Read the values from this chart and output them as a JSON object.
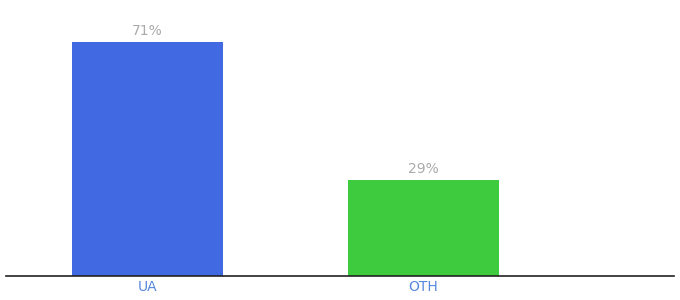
{
  "categories": [
    "UA",
    "OTH"
  ],
  "values": [
    71,
    29
  ],
  "bar_colors": [
    "#4169e1",
    "#3ecb3e"
  ],
  "label_color": "#aaaaaa",
  "axis_color": "#222222",
  "tick_color": "#5588dd",
  "background_color": "#ffffff",
  "ylim": [
    0,
    82
  ],
  "bar_width": 0.18,
  "label_fontsize": 10,
  "tick_fontsize": 10,
  "value_format": "{}%"
}
